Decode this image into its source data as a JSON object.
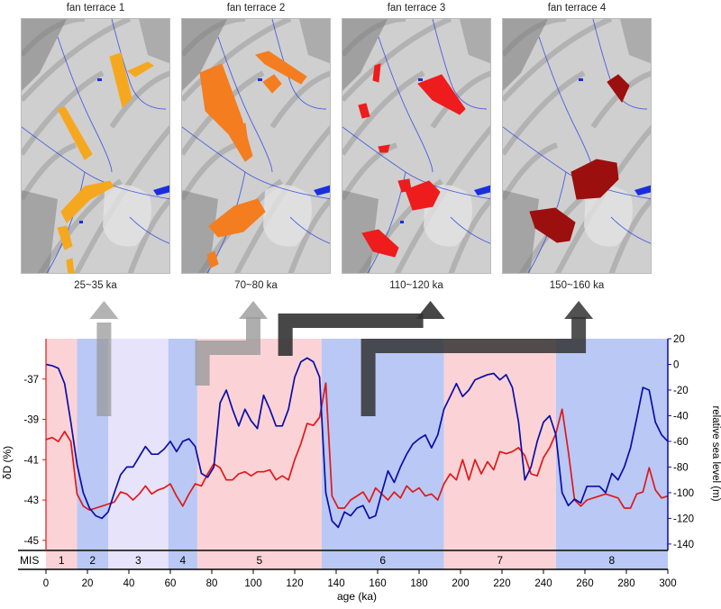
{
  "panels": [
    {
      "title": "fan terrace 1",
      "age": "25~35 ka",
      "fill": "#f5a81f",
      "icon": "terrain-map-icon"
    },
    {
      "title": "fan terrace 2",
      "age": "70~80 ka",
      "fill": "#f47d20",
      "icon": "terrain-map-icon"
    },
    {
      "title": "fan terrace 3",
      "age": "110~120 ka",
      "fill": "#ee1c1c",
      "icon": "terrain-map-icon"
    },
    {
      "title": "fan terrace 4",
      "age": "150~160 ka",
      "fill": "#9c0f0f",
      "icon": "terrain-map-icon"
    }
  ],
  "colors": {
    "warm_stage": "#fbd3d6",
    "cold_stage": "#b9c8f5",
    "mild_stage": "#e6e3fb",
    "dD_line": "#e01818",
    "sea_line": "#0a0ea8",
    "arrow_light": "#9a9a9a",
    "arrow_dark": "#333333"
  },
  "chart_data": {
    "type": "line",
    "xlabel": "age (ka)",
    "ylabel_left": "δD (%)",
    "ylabel_right": "relative sea level (m)",
    "xlim": [
      0,
      300
    ],
    "xticks": [
      0,
      20,
      40,
      60,
      80,
      100,
      120,
      140,
      160,
      180,
      200,
      220,
      240,
      260,
      280,
      300
    ],
    "ylim_left": [
      -45.5,
      -35
    ],
    "yticks_left": [
      -37,
      -39,
      -41,
      -43,
      -45
    ],
    "ylim_right": [
      -145,
      20
    ],
    "yticks_right": [
      20,
      0,
      -20,
      -40,
      -60,
      -80,
      -100,
      -120,
      -140
    ],
    "mis_label": "MIS",
    "mis_stages": [
      {
        "label": "1",
        "start": 0,
        "end": 15,
        "tone": "warm"
      },
      {
        "label": "2",
        "start": 15,
        "end": 30,
        "tone": "cold"
      },
      {
        "label": "3",
        "start": 30,
        "end": 59,
        "tone": "mild"
      },
      {
        "label": "4",
        "start": 59,
        "end": 73,
        "tone": "cold"
      },
      {
        "label": "5",
        "start": 73,
        "end": 133,
        "tone": "warm"
      },
      {
        "label": "6",
        "start": 133,
        "end": 192,
        "tone": "cold"
      },
      {
        "label": "7",
        "start": 192,
        "end": 246,
        "tone": "warm"
      },
      {
        "label": "8",
        "start": 246,
        "end": 300,
        "tone": "cold"
      }
    ],
    "series": [
      {
        "name": "δD",
        "axis": "left",
        "x": [
          0,
          3,
          6,
          9,
          12,
          15,
          18,
          21,
          24,
          27,
          30,
          33,
          36,
          39,
          42,
          45,
          48,
          51,
          54,
          57,
          60,
          63,
          66,
          69,
          72,
          75,
          78,
          81,
          84,
          87,
          90,
          93,
          96,
          99,
          102,
          105,
          108,
          111,
          114,
          117,
          120,
          123,
          126,
          129,
          132,
          135,
          138,
          141,
          144,
          147,
          150,
          153,
          156,
          159,
          162,
          165,
          168,
          171,
          174,
          177,
          180,
          183,
          186,
          189,
          192,
          195,
          198,
          201,
          204,
          207,
          210,
          213,
          216,
          219,
          222,
          225,
          228,
          231,
          234,
          237,
          240,
          243,
          246,
          249,
          252,
          255,
          258,
          261,
          264,
          267,
          270,
          273,
          276,
          279,
          282,
          285,
          288,
          291,
          294,
          297,
          300
        ],
        "values": [
          -40.0,
          -39.9,
          -40.1,
          -39.6,
          -40.1,
          -42.7,
          -43.3,
          -43.5,
          -43.4,
          -43.3,
          -43.2,
          -43.1,
          -42.6,
          -42.7,
          -43.0,
          -42.7,
          -42.3,
          -42.7,
          -42.5,
          -42.4,
          -42.2,
          -42.8,
          -43.3,
          -42.7,
          -42.2,
          -42.3,
          -41.7,
          -41.2,
          -41.4,
          -42.0,
          -42.0,
          -41.7,
          -41.6,
          -41.8,
          -41.6,
          -41.6,
          -41.5,
          -42.0,
          -41.8,
          -42.0,
          -41.0,
          -40.2,
          -39.2,
          -39.3,
          -38.9,
          -37.2,
          -42.8,
          -43.4,
          -43.4,
          -43.0,
          -42.8,
          -42.6,
          -43.1,
          -42.4,
          -42.7,
          -43.0,
          -42.6,
          -42.9,
          -42.3,
          -42.6,
          -42.4,
          -42.8,
          -42.7,
          -43.0,
          -42.2,
          -41.7,
          -42.0,
          -41.0,
          -42.0,
          -41.0,
          -41.7,
          -41.1,
          -41.5,
          -40.6,
          -40.7,
          -40.6,
          -40.4,
          -40.8,
          -41.7,
          -41.8,
          -40.9,
          -40.4,
          -39.7,
          -38.5,
          -40.6,
          -43.0,
          -43.3,
          -43.0,
          -42.9,
          -42.8,
          -42.7,
          -42.8,
          -42.9,
          -43.4,
          -43.4,
          -42.7,
          -42.6,
          -41.4,
          -42.5,
          -42.9,
          -42.8
        ]
      },
      {
        "name": "relative sea level",
        "axis": "right",
        "x": [
          0,
          3,
          6,
          9,
          12,
          15,
          18,
          21,
          24,
          27,
          30,
          33,
          36,
          39,
          42,
          45,
          48,
          51,
          54,
          57,
          60,
          63,
          66,
          69,
          72,
          75,
          78,
          81,
          84,
          87,
          90,
          93,
          96,
          99,
          102,
          105,
          108,
          111,
          114,
          117,
          120,
          123,
          126,
          129,
          132,
          135,
          138,
          141,
          144,
          147,
          150,
          153,
          156,
          159,
          162,
          165,
          168,
          171,
          174,
          177,
          180,
          183,
          186,
          189,
          192,
          195,
          198,
          201,
          204,
          207,
          210,
          213,
          216,
          219,
          222,
          225,
          228,
          231,
          234,
          237,
          240,
          243,
          246,
          249,
          252,
          255,
          258,
          261,
          264,
          267,
          270,
          273,
          276,
          279,
          282,
          285,
          288,
          291,
          294,
          297,
          300
        ],
        "values": [
          0,
          -1,
          -3,
          -15,
          -45,
          -78,
          -100,
          -112,
          -118,
          -120,
          -115,
          -100,
          -86,
          -80,
          -80,
          -72,
          -64,
          -70,
          -70,
          -66,
          -60,
          -68,
          -60,
          -58,
          -64,
          -85,
          -88,
          -80,
          -30,
          -20,
          -35,
          -48,
          -35,
          -44,
          -50,
          -24,
          -35,
          -48,
          -48,
          -35,
          -10,
          2,
          5,
          2,
          -10,
          -100,
          -122,
          -127,
          -115,
          -118,
          -112,
          -110,
          -120,
          -118,
          -100,
          -83,
          -92,
          -80,
          -70,
          -62,
          -58,
          -55,
          -65,
          -55,
          -35,
          -25,
          -15,
          -25,
          -20,
          -12,
          -10,
          -8,
          -7,
          -12,
          -8,
          -18,
          -45,
          -90,
          -80,
          -60,
          -45,
          -40,
          -55,
          -100,
          -110,
          -105,
          -108,
          -95,
          -95,
          -95,
          -100,
          -85,
          -90,
          -80,
          -65,
          -42,
          -18,
          -20,
          -45,
          -55,
          -60
        ]
      }
    ]
  }
}
